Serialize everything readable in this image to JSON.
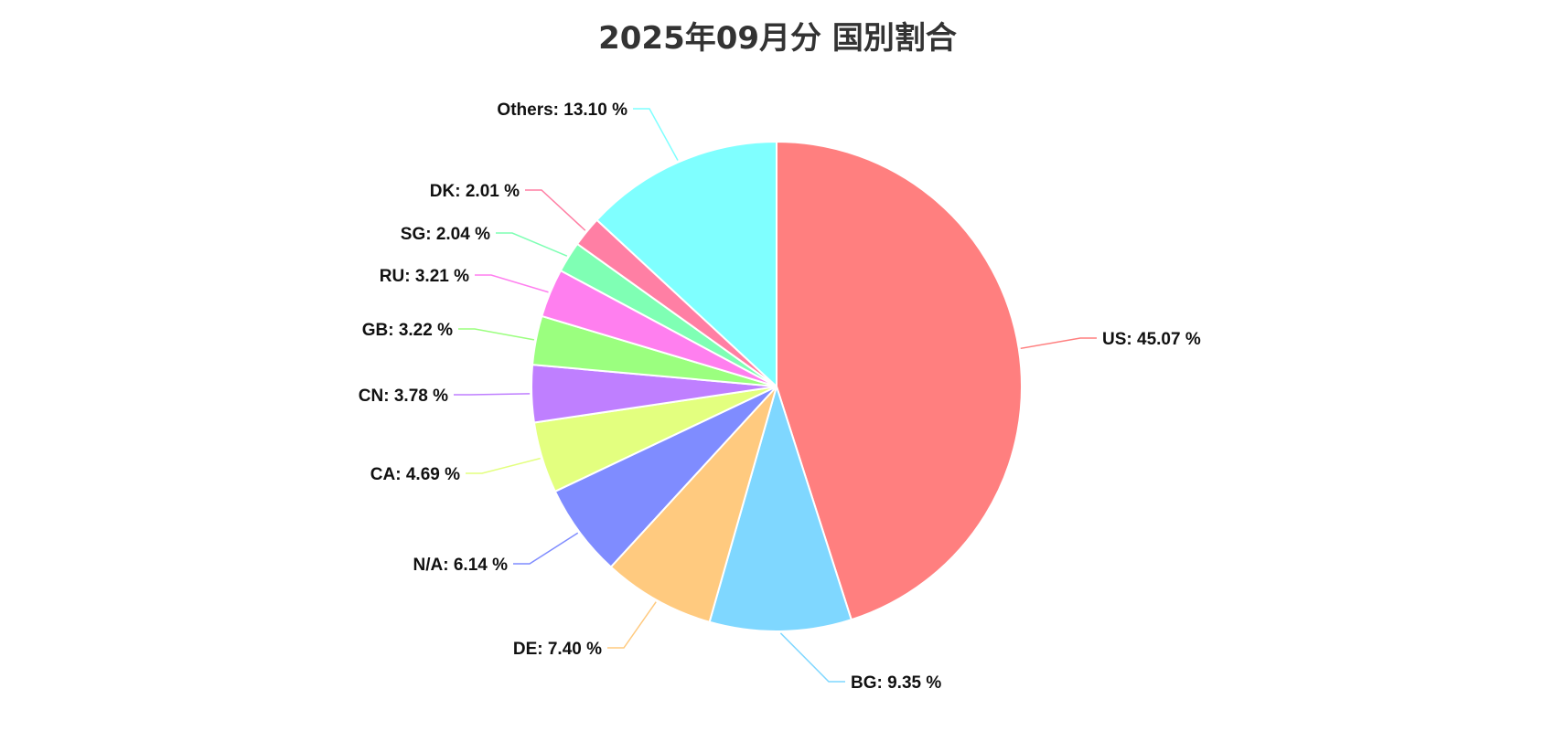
{
  "chart_data": {
    "type": "pie",
    "title": "2025年09月分 国別割合",
    "unit": "%",
    "slices": [
      {
        "label": "US",
        "value": 45.07,
        "color": "#ff7f7f"
      },
      {
        "label": "BG",
        "value": 9.35,
        "color": "#7fd7ff"
      },
      {
        "label": "DE",
        "value": 7.4,
        "color": "#ffca7f"
      },
      {
        "label": "N/A",
        "value": 6.14,
        "color": "#7f8cff"
      },
      {
        "label": "CA",
        "value": 4.69,
        "color": "#e3ff7f"
      },
      {
        "label": "CN",
        "value": 3.78,
        "color": "#bf7fff"
      },
      {
        "label": "GB",
        "value": 3.22,
        "color": "#9bff7f"
      },
      {
        "label": "RU",
        "value": 3.21,
        "color": "#ff7fef"
      },
      {
        "label": "SG",
        "value": 2.04,
        "color": "#7fffb4"
      },
      {
        "label": "DK",
        "value": 2.01,
        "color": "#ff7fa4"
      },
      {
        "label": "Others",
        "value": 13.1,
        "color": "#7fffff"
      }
    ],
    "labels_text": [
      "US: 45.07 %",
      "BG: 9.35 %",
      "DE: 7.40 %",
      "N/A: 6.14 %",
      "CA: 4.69 %",
      "CN: 3.78 %",
      "GB: 3.22 %",
      "RU: 3.21 %",
      "SG: 2.04 %",
      "DK: 2.01 %",
      "Others: 13.10 %"
    ],
    "start_angle": "top",
    "direction": "clockwise",
    "legend": "none"
  }
}
